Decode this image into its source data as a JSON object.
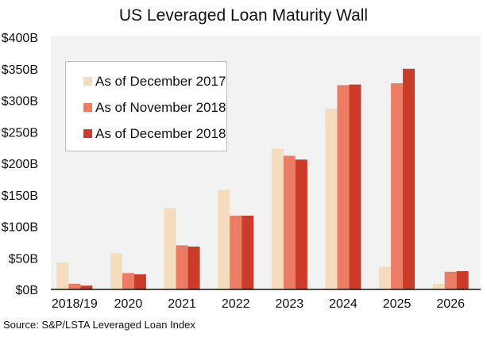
{
  "chart_data": {
    "type": "bar",
    "title": "US Leveraged Loan Maturity Wall",
    "source": "Source: S&P/LSTA Leveraged Loan Index",
    "categories": [
      "2018/19",
      "2020",
      "2021",
      "2022",
      "2023",
      "2024",
      "2025",
      "2026"
    ],
    "series": [
      {
        "name": "As of December 2017",
        "color": "#f5dcbd",
        "values": [
          43,
          57,
          129,
          158,
          223,
          287,
          36,
          9
        ]
      },
      {
        "name": "As of November 2018",
        "color": "#ec7c64",
        "values": [
          9,
          26,
          70,
          117,
          212,
          324,
          327,
          28
        ]
      },
      {
        "name": "As of December 2018",
        "color": "#cb3b29",
        "values": [
          6,
          24,
          68,
          117,
          206,
          325,
          350,
          29
        ]
      }
    ],
    "yticks": [
      "$0B",
      "$50B",
      "$100B",
      "$150B",
      "$200B",
      "$250B",
      "$300B",
      "$350B",
      "$400B"
    ],
    "ylim": [
      0,
      400
    ],
    "xlabel": "",
    "ylabel": "",
    "legend_position": "top-left",
    "grid": false
  }
}
